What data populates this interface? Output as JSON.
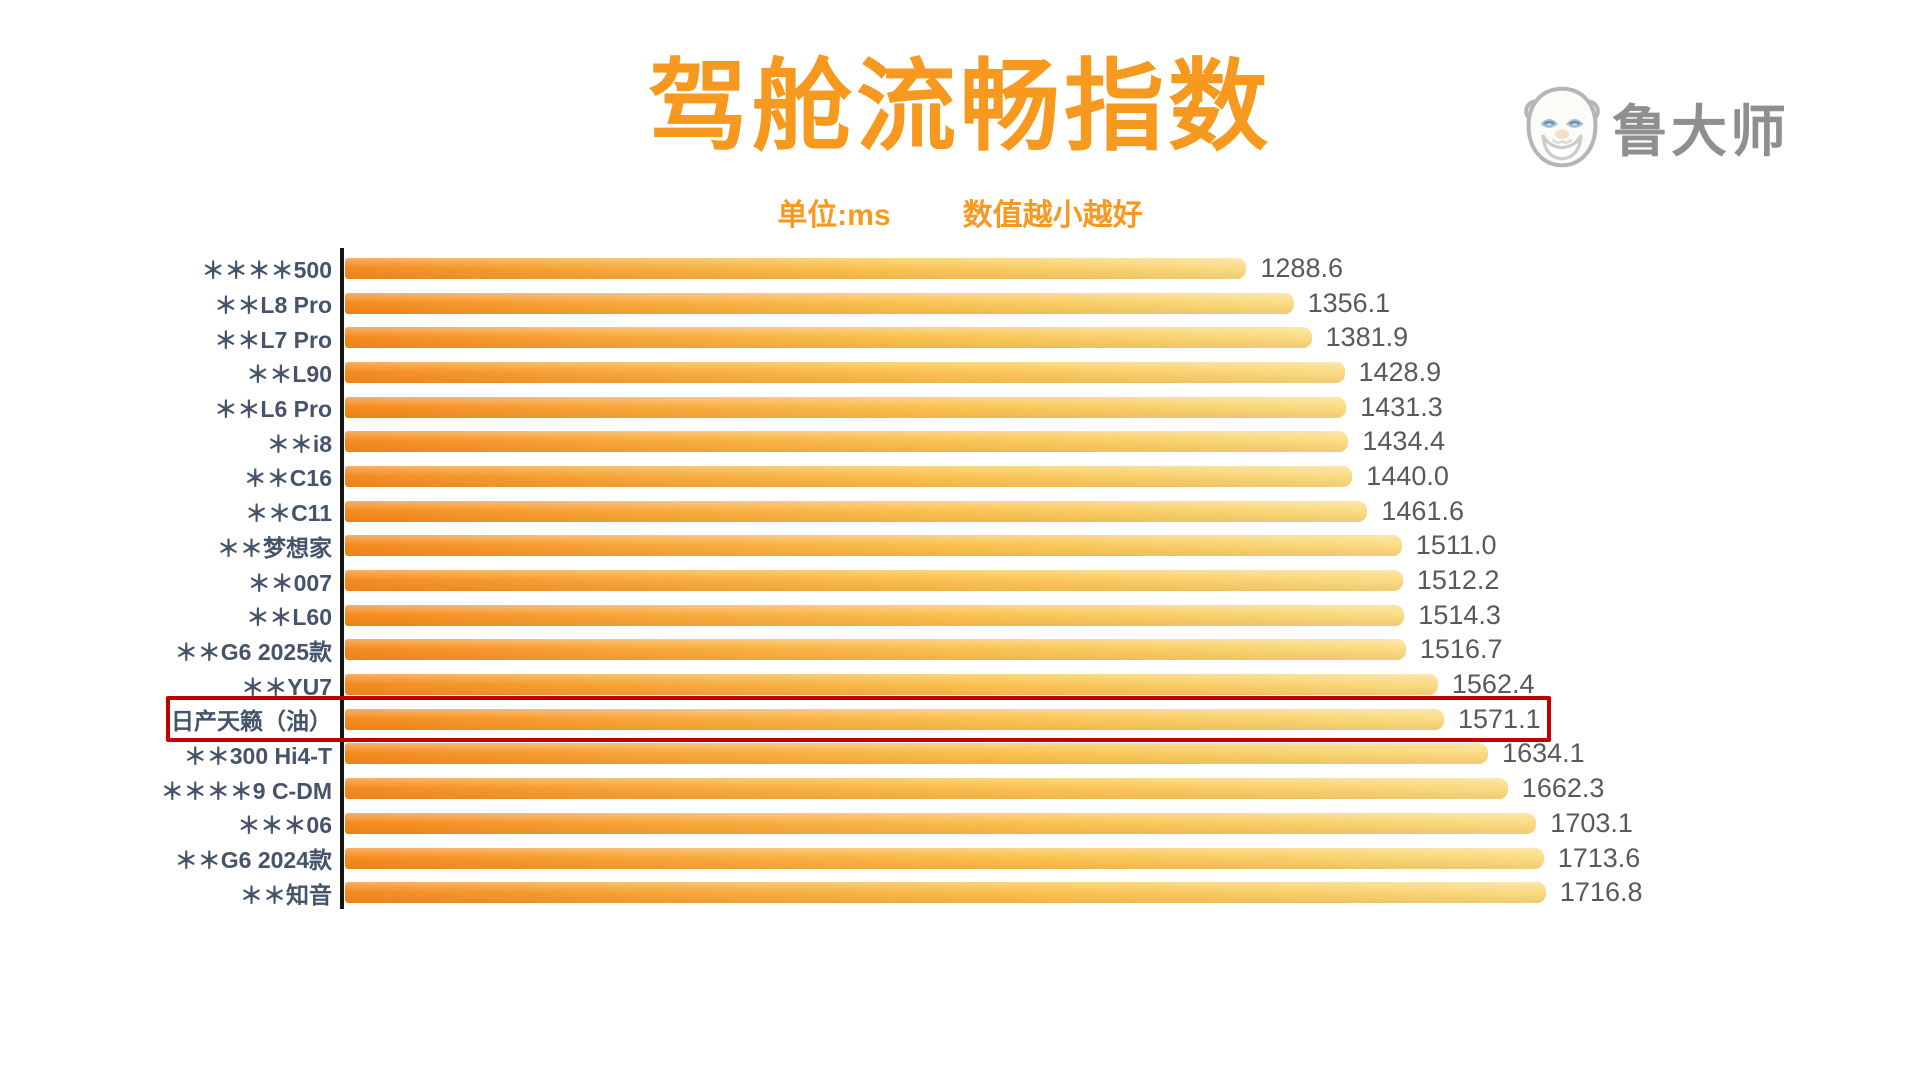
{
  "title": "驾舱流畅指数",
  "subtitle": {
    "unit_label": "单位:ms",
    "note": "数值越小越好"
  },
  "logo": {
    "text": "鲁大师",
    "icon": "ludashi-mascot-icon"
  },
  "colors": {
    "accent_orange": "#f7991f",
    "bar_gradient_start": "#f58a1e",
    "bar_gradient_mid": "#fbc14e",
    "bar_gradient_end": "#fbdc84",
    "label_text": "#44546a",
    "value_text": "#595959",
    "axis_line": "#151515",
    "highlight_box": "#c00000",
    "logo_gray": "#8f8f8f",
    "background": "#ffffff"
  },
  "chart_data": {
    "type": "bar",
    "orientation": "horizontal",
    "title": "驾舱流畅指数",
    "unit": "ms",
    "note": "数值越小越好",
    "xlabel": "",
    "ylabel": "",
    "xlim": [
      0,
      1750
    ],
    "grid": false,
    "legend": false,
    "sorted": "ascending (smaller is better)",
    "categories": [
      "＊＊＊＊500",
      "＊＊L8 Pro",
      "＊＊L7 Pro",
      "＊＊L90",
      "＊＊L6 Pro",
      "＊＊i8",
      "＊＊C16",
      "＊＊C11",
      "＊＊梦想家",
      "＊＊007",
      "＊＊L60",
      "＊＊G6 2025款",
      "＊＊YU7",
      "日产天籁（油）",
      "＊＊300 Hi4-T",
      "＊＊＊＊9 C-DM",
      "＊＊＊06",
      "＊＊G6 2024款",
      "＊＊知音"
    ],
    "values": [
      1288.6,
      1356.1,
      1381.9,
      1428.9,
      1431.3,
      1434.4,
      1440.0,
      1461.6,
      1511.0,
      1512.2,
      1514.3,
      1516.7,
      1562.4,
      1571.1,
      1634.1,
      1662.3,
      1703.1,
      1713.6,
      1716.8
    ],
    "value_labels": [
      "1288.6",
      "1356.1",
      "1381.9",
      "1428.9",
      "1431.3",
      "1434.4",
      "1440.0",
      "1461.6",
      "1511.0",
      "1512.2",
      "1514.3",
      "1516.7",
      "1562.4",
      "1571.1",
      "1634.1",
      "1662.3",
      "1703.1",
      "1713.6",
      "1716.8"
    ],
    "highlighted_category": "日产天籁（油）",
    "highlight_color": "#c00000"
  }
}
